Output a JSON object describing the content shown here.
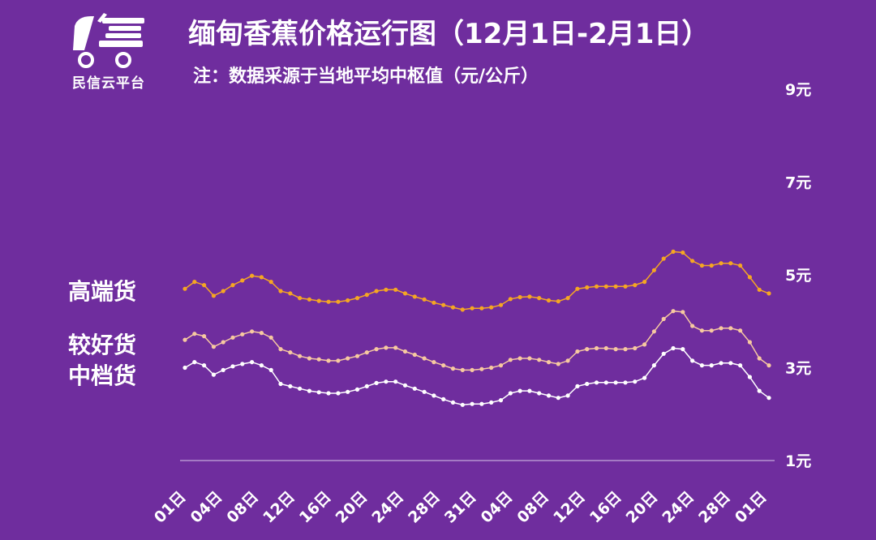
{
  "logo": {
    "text": "民信云平台"
  },
  "header": {
    "title": "缅甸香蕉价格运行图（12月1日-2月1日）",
    "subtitle": "注：数据采源于当地平均中枢值（元/公斤）"
  },
  "colors": {
    "background": "#6f2d9e",
    "high": "#f5a623",
    "good": "#f7c9a0",
    "mid": "#ffffff"
  },
  "chart_data": {
    "type": "line",
    "title": "缅甸香蕉价格运行图（12月1日-2月1日）",
    "ylabel": "",
    "ylim": [
      1,
      9
    ],
    "yticks": [
      {
        "value": 1,
        "label": "1元"
      },
      {
        "value": 3,
        "label": "3元"
      },
      {
        "value": 5,
        "label": "5元"
      },
      {
        "value": 7,
        "label": "7元"
      },
      {
        "value": 9,
        "label": "9元"
      }
    ],
    "xtick_labels": [
      "01日",
      "04日",
      "08日",
      "12日",
      "16日",
      "20日",
      "24日",
      "28日",
      "31日",
      "04日",
      "08日",
      "12日",
      "16日",
      "20日",
      "24日",
      "28日",
      "01日"
    ],
    "grid": false,
    "series": [
      {
        "name": "高端货",
        "values": [
          4.7,
          4.85,
          4.78,
          4.55,
          4.65,
          4.78,
          4.88,
          4.98,
          4.95,
          4.85,
          4.65,
          4.6,
          4.5,
          4.47,
          4.44,
          4.42,
          4.42,
          4.45,
          4.5,
          4.57,
          4.65,
          4.68,
          4.68,
          4.6,
          4.53,
          4.47,
          4.4,
          4.35,
          4.3,
          4.25,
          4.28,
          4.28,
          4.3,
          4.35,
          4.48,
          4.52,
          4.53,
          4.5,
          4.45,
          4.43,
          4.5,
          4.7,
          4.73,
          4.75,
          4.75,
          4.75,
          4.75,
          4.78,
          4.85,
          5.1,
          5.35,
          5.5,
          5.48,
          5.3,
          5.2,
          5.2,
          5.25,
          5.25,
          5.2,
          4.95,
          4.68,
          4.6
        ]
      },
      {
        "name": "较好货",
        "values": [
          3.6,
          3.73,
          3.68,
          3.45,
          3.55,
          3.65,
          3.72,
          3.78,
          3.75,
          3.65,
          3.4,
          3.33,
          3.25,
          3.2,
          3.18,
          3.15,
          3.15,
          3.2,
          3.25,
          3.33,
          3.4,
          3.43,
          3.43,
          3.35,
          3.28,
          3.2,
          3.12,
          3.05,
          2.98,
          2.95,
          2.95,
          2.97,
          3.0,
          3.05,
          3.17,
          3.2,
          3.2,
          3.17,
          3.12,
          3.08,
          3.15,
          3.35,
          3.4,
          3.42,
          3.42,
          3.4,
          3.4,
          3.42,
          3.5,
          3.78,
          4.05,
          4.22,
          4.2,
          3.9,
          3.8,
          3.8,
          3.85,
          3.85,
          3.8,
          3.55,
          3.2,
          3.05
        ]
      },
      {
        "name": "中档货",
        "values": [
          3.0,
          3.12,
          3.05,
          2.85,
          2.95,
          3.03,
          3.08,
          3.12,
          3.05,
          2.95,
          2.65,
          2.6,
          2.55,
          2.5,
          2.47,
          2.45,
          2.45,
          2.48,
          2.53,
          2.6,
          2.67,
          2.7,
          2.7,
          2.62,
          2.55,
          2.48,
          2.4,
          2.32,
          2.25,
          2.2,
          2.22,
          2.22,
          2.25,
          2.3,
          2.45,
          2.5,
          2.5,
          2.45,
          2.4,
          2.35,
          2.4,
          2.6,
          2.65,
          2.68,
          2.68,
          2.68,
          2.68,
          2.7,
          2.78,
          3.05,
          3.3,
          3.42,
          3.4,
          3.15,
          3.05,
          3.05,
          3.1,
          3.1,
          3.05,
          2.8,
          2.5,
          2.35
        ]
      }
    ]
  }
}
